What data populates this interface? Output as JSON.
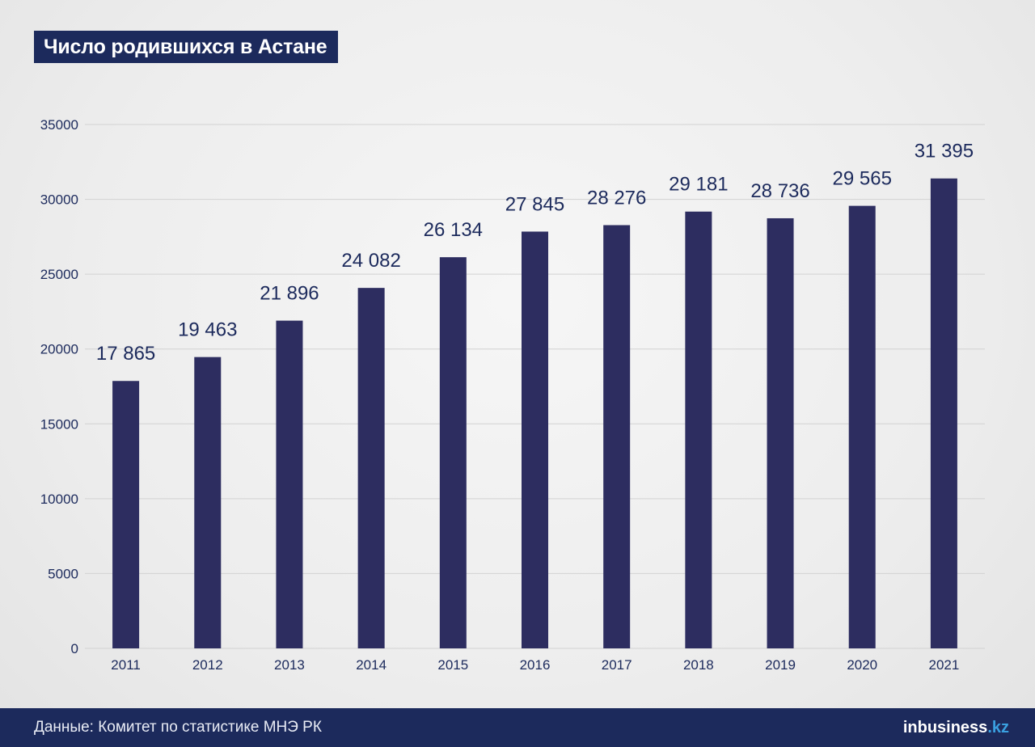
{
  "title": "Число родившихся в Астане",
  "footer": {
    "source": "Данные: Комитет по статистике МНЭ РК",
    "brand_main": "inbusiness",
    "brand_tld": ".kz"
  },
  "colors": {
    "bar": "#2d2d60",
    "title_bg": "#1c2a5c",
    "label": "#1c2a5c",
    "grid": "#d2d2d2"
  },
  "chart_data": {
    "type": "bar",
    "title": "Число родившихся в Астане",
    "xlabel": "",
    "ylabel": "",
    "categories": [
      "2011",
      "2012",
      "2013",
      "2014",
      "2015",
      "2016",
      "2017",
      "2018",
      "2019",
      "2020",
      "2021"
    ],
    "values": [
      17865,
      19463,
      21896,
      24082,
      26134,
      27845,
      28276,
      29181,
      28736,
      29565,
      31395
    ],
    "data_labels": [
      "17 865",
      "19 463",
      "21 896",
      "24 082",
      "26 134",
      "27 845",
      "28 276",
      "29 181",
      "28 736",
      "29 565",
      "31 395"
    ],
    "ylim": [
      0,
      35000
    ],
    "yticks": [
      0,
      5000,
      10000,
      15000,
      20000,
      25000,
      30000,
      35000
    ],
    "ytick_labels": [
      "0",
      "5000",
      "10000",
      "15000",
      "20000",
      "25000",
      "30000",
      "35000"
    ],
    "grid": true,
    "legend": "none"
  }
}
